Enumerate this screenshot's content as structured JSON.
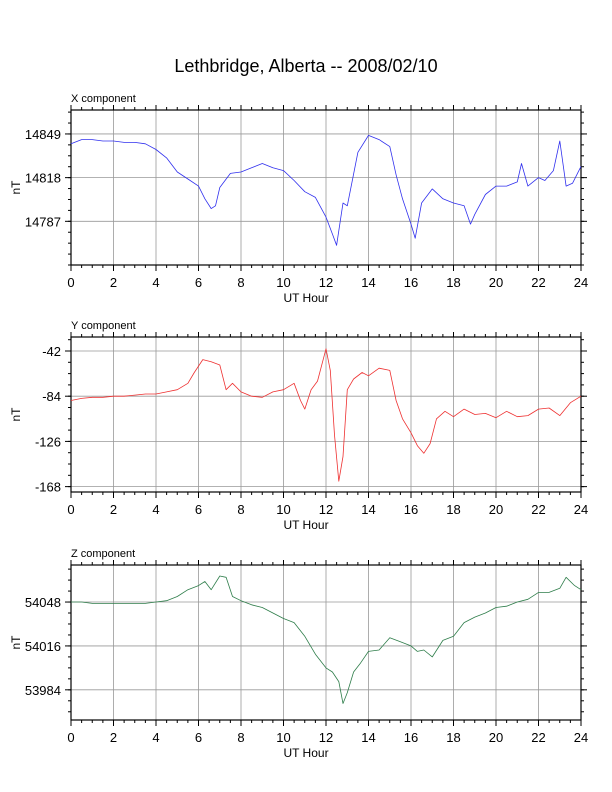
{
  "title": "Lethbridge, Alberta -- 2008/02/10",
  "chart_data": [
    {
      "type": "line",
      "panel_title": "X component",
      "xlabel": "UT Hour",
      "ylabel": "nT",
      "xlim": [
        0,
        24
      ],
      "ylim": [
        14756,
        14866
      ],
      "x_ticks": [
        "0",
        "2",
        "4",
        "6",
        "8",
        "10",
        "12",
        "14",
        "16",
        "18",
        "20",
        "22",
        "24"
      ],
      "y_ticks": [
        "14849",
        "14818",
        "14787"
      ],
      "y_tick_values": [
        14849,
        14818,
        14787
      ],
      "grid": true,
      "color": "#3030ee",
      "series": [
        {
          "x": [
            0,
            0.5,
            1,
            1.5,
            2,
            2.5,
            3,
            3.5,
            4,
            4.5,
            5,
            5.5,
            6,
            6.3,
            6.6,
            6.8,
            7,
            7.5,
            8,
            8.5,
            9,
            9.5,
            10,
            10.5,
            11,
            11.5,
            12,
            12.3,
            12.5,
            12.8,
            13,
            13.5,
            14,
            14.5,
            15,
            15.3,
            15.6,
            16,
            16.2,
            16.5,
            17,
            17.5,
            18,
            18.5,
            18.8,
            19,
            19.5,
            20,
            20.5,
            21,
            21.2,
            21.5,
            22,
            22.3,
            22.7,
            23,
            23.3,
            23.6,
            24
          ],
          "y": [
            14842,
            14845,
            14845,
            14844,
            14844,
            14843,
            14843,
            14842,
            14838,
            14832,
            14822,
            14817,
            14812,
            14803,
            14796,
            14798,
            14811,
            14821,
            14822,
            14825,
            14828,
            14825,
            14823,
            14816,
            14808,
            14804,
            14790,
            14778,
            14770,
            14800,
            14798,
            14836,
            14848,
            14845,
            14840,
            14820,
            14803,
            14785,
            14775,
            14800,
            14810,
            14803,
            14800,
            14798,
            14785,
            14792,
            14806,
            14812,
            14812,
            14815,
            14828,
            14812,
            14818,
            14816,
            14823,
            14844,
            14812,
            14814,
            14826
          ]
        }
      ]
    },
    {
      "type": "line",
      "panel_title": "Y component",
      "xlabel": "UT Hour",
      "ylabel": "nT",
      "xlim": [
        0,
        24
      ],
      "ylim": [
        -173,
        -29
      ],
      "x_ticks": [
        "0",
        "2",
        "4",
        "6",
        "8",
        "10",
        "12",
        "14",
        "16",
        "18",
        "20",
        "22",
        "24"
      ],
      "y_ticks": [
        "-42",
        "-84",
        "-126",
        "-168"
      ],
      "y_tick_values": [
        -42,
        -84,
        -126,
        -168
      ],
      "grid": true,
      "color": "#ee3030",
      "series": [
        {
          "x": [
            0,
            0.5,
            1,
            1.5,
            2,
            2.5,
            3,
            3.5,
            4,
            4.5,
            5,
            5.5,
            5.8,
            6.2,
            6.6,
            7,
            7.3,
            7.6,
            8,
            8.5,
            9,
            9.5,
            10,
            10.5,
            10.8,
            11,
            11.3,
            11.6,
            12,
            12.2,
            12.4,
            12.6,
            12.8,
            13,
            13.3,
            13.7,
            14,
            14.5,
            15,
            15.3,
            15.6,
            16,
            16.3,
            16.6,
            16.9,
            17.2,
            17.6,
            18,
            18.5,
            19,
            19.5,
            20,
            20.5,
            21,
            21.5,
            22,
            22.5,
            23,
            23.5,
            24
          ],
          "y": [
            -88,
            -86,
            -85,
            -85,
            -84,
            -84,
            -83,
            -82,
            -82,
            -80,
            -78,
            -72,
            -62,
            -50,
            -52,
            -55,
            -78,
            -72,
            -80,
            -84,
            -85,
            -80,
            -78,
            -72,
            -88,
            -96,
            -78,
            -70,
            -40,
            -60,
            -120,
            -163,
            -140,
            -78,
            -68,
            -62,
            -65,
            -58,
            -60,
            -88,
            -105,
            -118,
            -130,
            -137,
            -128,
            -105,
            -98,
            -103,
            -96,
            -101,
            -100,
            -104,
            -98,
            -103,
            -102,
            -96,
            -95,
            -102,
            -90,
            -84
          ]
        }
      ]
    },
    {
      "type": "line",
      "panel_title": "Z component",
      "xlabel": "UT Hour",
      "ylabel": "nT",
      "xlim": [
        0,
        24
      ],
      "ylim": [
        53962,
        54075
      ],
      "x_ticks": [
        "0",
        "2",
        "4",
        "6",
        "8",
        "10",
        "12",
        "14",
        "16",
        "18",
        "20",
        "22",
        "24"
      ],
      "y_ticks": [
        "54048",
        "54016",
        "53984"
      ],
      "y_tick_values": [
        54048,
        54016,
        53984
      ],
      "grid": true,
      "color": "#2e7d4a",
      "series": [
        {
          "x": [
            0,
            0.5,
            1,
            1.5,
            2,
            2.5,
            3,
            3.5,
            4,
            4.5,
            5,
            5.5,
            6,
            6.3,
            6.6,
            7,
            7.3,
            7.6,
            8,
            8.5,
            9,
            9.5,
            10,
            10.5,
            11,
            11.5,
            12,
            12.3,
            12.6,
            12.8,
            13,
            13.3,
            13.6,
            14,
            14.5,
            15,
            15.5,
            16,
            16.3,
            16.6,
            17,
            17.5,
            18,
            18.5,
            19,
            19.5,
            20,
            20.5,
            21,
            21.5,
            22,
            22.5,
            23,
            23.3,
            23.7,
            24
          ],
          "y": [
            54048,
            54048,
            54047,
            54047,
            54047,
            54047,
            54047,
            54047,
            54048,
            54049,
            54052,
            54057,
            54060,
            54063,
            54057,
            54067,
            54066,
            54052,
            54049,
            54046,
            54044,
            54040,
            54036,
            54033,
            54023,
            54010,
            54000,
            53997,
            53990,
            53974,
            53982,
            53997,
            54003,
            54012,
            54013,
            54022,
            54019,
            54016,
            54012,
            54013,
            54008,
            54020,
            54023,
            54033,
            54037,
            54040,
            54044,
            54045,
            54048,
            54050,
            54055,
            54055,
            54058,
            54066,
            54060,
            54057
          ]
        }
      ]
    }
  ]
}
